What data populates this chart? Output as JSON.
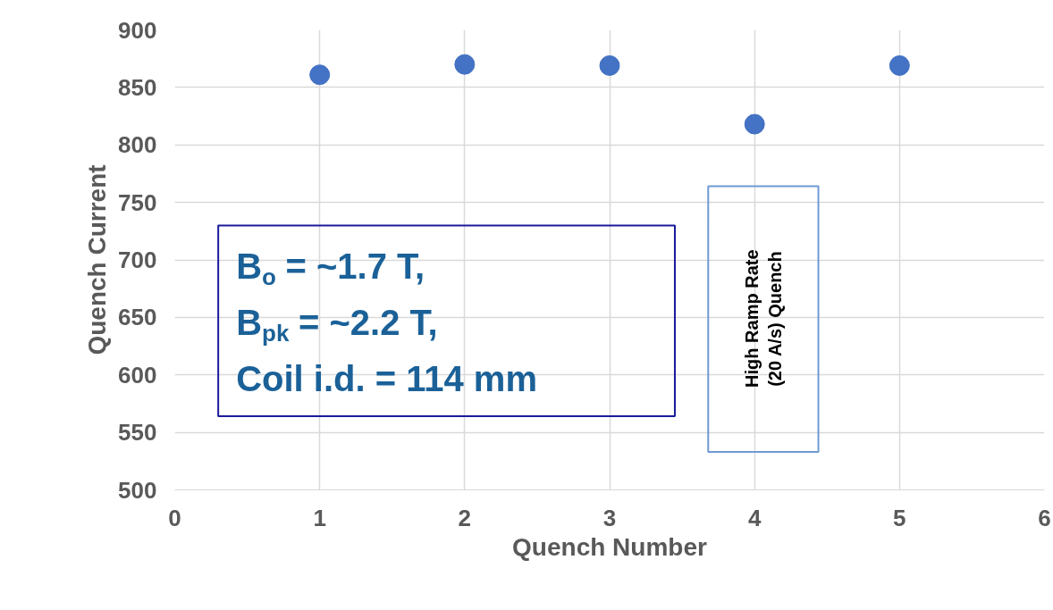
{
  "chart_data": {
    "type": "scatter",
    "xlabel": "Quench Number",
    "ylabel": "Quench Current",
    "x": [
      1,
      2,
      3,
      4,
      5
    ],
    "series": [
      {
        "color": "#4472c4",
        "values": [
          861,
          870,
          869,
          818,
          869
        ]
      }
    ],
    "xlim": [
      0,
      6
    ],
    "xticks": [
      0,
      1,
      2,
      3,
      4,
      5,
      6
    ],
    "ylim": [
      500,
      900
    ],
    "yticks": [
      500,
      550,
      600,
      650,
      700,
      750,
      800,
      850,
      900
    ],
    "grid": true,
    "marker": "circle",
    "annotations": [
      "B$_{o}$ = ~1.7 T,",
      "B$_{pk}$ = ~2.2 T,",
      "Coil i.d. = 114 mm",
      "High Ramp Rate\n(20 A/s) Quench"
    ]
  }
}
